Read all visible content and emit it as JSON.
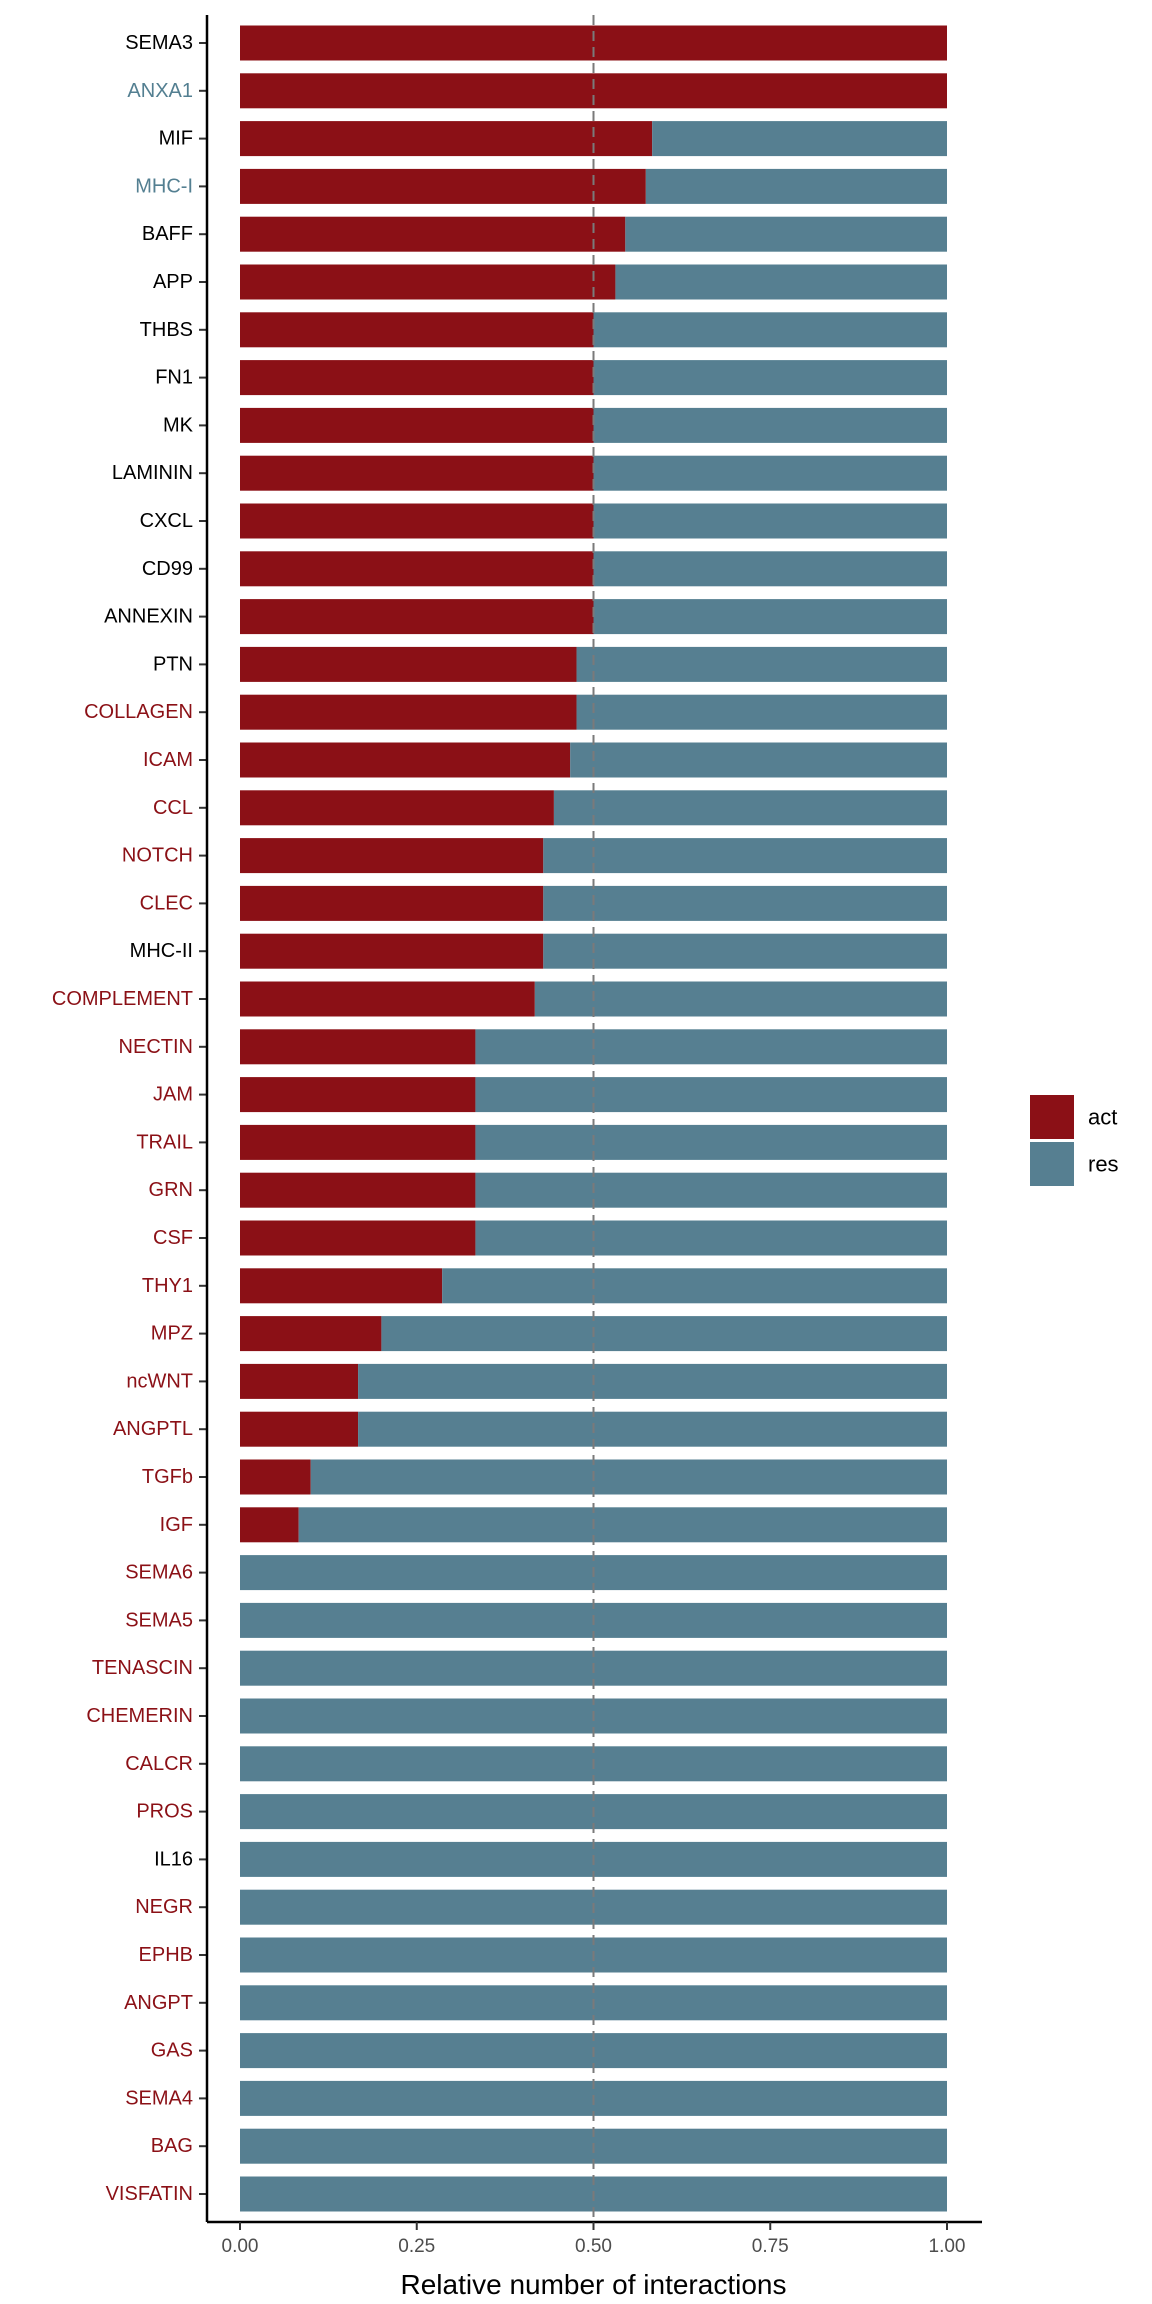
{
  "chart_data": {
    "type": "bar",
    "orientation": "horizontal",
    "stacked": true,
    "xlabel": "Relative number of interactions",
    "ylabel": "",
    "title": "",
    "xlim": [
      0,
      1
    ],
    "xticks": [
      0,
      0.25,
      0.5,
      0.75,
      1
    ],
    "xtick_labels": [
      "0.00",
      "0.25",
      "0.50",
      "0.75",
      "1.00"
    ],
    "reference_line": 0.5,
    "grid": false,
    "legend_position": "right",
    "categories": [
      "SEMA3",
      "ANXA1",
      "MIF",
      "MHC-I",
      "BAFF",
      "APP",
      "THBS",
      "FN1",
      "MK",
      "LAMININ",
      "CXCL",
      "CD99",
      "ANNEXIN",
      "PTN",
      "COLLAGEN",
      "ICAM",
      "CCL",
      "NOTCH",
      "CLEC",
      "MHC-II",
      "COMPLEMENT",
      "NECTIN",
      "JAM",
      "TRAIL",
      "GRN",
      "CSF",
      "THY1",
      "MPZ",
      "ncWNT",
      "ANGPTL",
      "TGFb",
      "IGF",
      "SEMA6",
      "SEMA5",
      "TENASCIN",
      "CHEMERIN",
      "CALCR",
      "PROS",
      "IL16",
      "NEGR",
      "EPHB",
      "ANGPT",
      "GAS",
      "SEMA4",
      "BAG",
      "VISFATIN"
    ],
    "label_colors": [
      "#000000",
      "#537f91",
      "#000000",
      "#537f91",
      "#000000",
      "#000000",
      "#000000",
      "#000000",
      "#000000",
      "#000000",
      "#000000",
      "#000000",
      "#000000",
      "#000000",
      "#8b1016",
      "#8b1016",
      "#8b1016",
      "#8b1016",
      "#8b1016",
      "#000000",
      "#8b1016",
      "#8b1016",
      "#8b1016",
      "#8b1016",
      "#8b1016",
      "#8b1016",
      "#8b1016",
      "#8b1016",
      "#8b1016",
      "#8b1016",
      "#8b1016",
      "#8b1016",
      "#8b1016",
      "#8b1016",
      "#8b1016",
      "#8b1016",
      "#8b1016",
      "#8b1016",
      "#000000",
      "#8b1016",
      "#8b1016",
      "#8b1016",
      "#8b1016",
      "#8b1016",
      "#8b1016",
      "#8b1016"
    ],
    "series": [
      {
        "name": "act",
        "color": "#8b1016",
        "values": [
          1.0,
          1.0,
          0.583,
          0.574,
          0.545,
          0.531,
          0.5,
          0.5,
          0.5,
          0.5,
          0.5,
          0.5,
          0.5,
          0.476,
          0.476,
          0.467,
          0.444,
          0.429,
          0.429,
          0.429,
          0.417,
          0.333,
          0.333,
          0.333,
          0.333,
          0.333,
          0.286,
          0.2,
          0.167,
          0.167,
          0.1,
          0.083,
          0,
          0,
          0,
          0,
          0,
          0,
          0,
          0,
          0,
          0,
          0,
          0,
          0,
          0
        ]
      },
      {
        "name": "res",
        "color": "#567f91",
        "values": [
          0,
          0,
          0.417,
          0.426,
          0.455,
          0.469,
          0.5,
          0.5,
          0.5,
          0.5,
          0.5,
          0.5,
          0.5,
          0.524,
          0.524,
          0.533,
          0.556,
          0.571,
          0.571,
          0.571,
          0.583,
          0.667,
          0.667,
          0.667,
          0.667,
          0.667,
          0.714,
          0.8,
          0.833,
          0.833,
          0.9,
          0.917,
          1,
          1,
          1,
          1,
          1,
          1,
          1,
          1,
          1,
          1,
          1,
          1,
          1,
          1
        ]
      }
    ]
  }
}
